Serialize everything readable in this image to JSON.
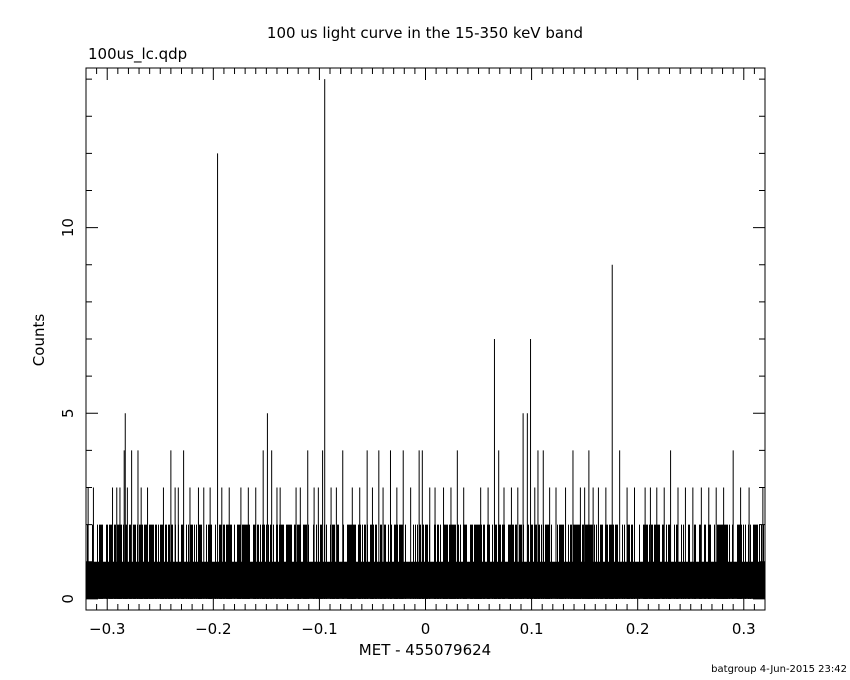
{
  "chart_data": {
    "type": "bar",
    "title": "100 us light curve in the 15-350 keV band",
    "subtitle": "100us_lc.qdp",
    "xlabel": "MET - 455079624",
    "ylabel": "Counts",
    "footer": "batgroup  4-Jun-2015 23:42",
    "xlim": [
      -0.32,
      0.32
    ],
    "ylim": [
      -0.3,
      14.3
    ],
    "x_ticks": [
      -0.3,
      -0.2,
      -0.1,
      0,
      0.1,
      0.2,
      0.3
    ],
    "x_tick_labels": [
      "−0.3",
      "−0.2",
      "−0.1",
      "0",
      "0.1",
      "0.2",
      "0.3"
    ],
    "y_ticks": [
      0,
      5,
      10
    ],
    "y_tick_labels": [
      "0",
      "5",
      "10"
    ],
    "bin_width": 0.0001,
    "baseline_note": "Counts of 0-2 in nearly every bin",
    "series": [
      {
        "points": [
          {
            "x": -0.283,
            "y": 5
          },
          {
            "x": -0.284,
            "y": 4
          },
          {
            "x": -0.277,
            "y": 4
          },
          {
            "x": -0.271,
            "y": 4
          },
          {
            "x": -0.24,
            "y": 4
          },
          {
            "x": -0.228,
            "y": 4
          },
          {
            "x": -0.196,
            "y": 12
          },
          {
            "x": -0.153,
            "y": 4
          },
          {
            "x": -0.149,
            "y": 5
          },
          {
            "x": -0.145,
            "y": 4
          },
          {
            "x": -0.111,
            "y": 4
          },
          {
            "x": -0.097,
            "y": 4
          },
          {
            "x": -0.095,
            "y": 14
          },
          {
            "x": -0.078,
            "y": 4
          },
          {
            "x": -0.055,
            "y": 4
          },
          {
            "x": -0.044,
            "y": 4
          },
          {
            "x": -0.033,
            "y": 4
          },
          {
            "x": -0.021,
            "y": 4
          },
          {
            "x": -0.006,
            "y": 4
          },
          {
            "x": -0.003,
            "y": 4
          },
          {
            "x": 0.03,
            "y": 4
          },
          {
            "x": 0.065,
            "y": 7
          },
          {
            "x": 0.069,
            "y": 4
          },
          {
            "x": 0.092,
            "y": 5
          },
          {
            "x": 0.096,
            "y": 5
          },
          {
            "x": 0.099,
            "y": 7
          },
          {
            "x": 0.106,
            "y": 4
          },
          {
            "x": 0.111,
            "y": 4
          },
          {
            "x": 0.139,
            "y": 4
          },
          {
            "x": 0.154,
            "y": 4
          },
          {
            "x": 0.176,
            "y": 9
          },
          {
            "x": 0.183,
            "y": 4
          },
          {
            "x": 0.231,
            "y": 4
          },
          {
            "x": 0.29,
            "y": 4
          },
          {
            "x": -0.318,
            "y": 3
          },
          {
            "x": -0.313,
            "y": 3
          },
          {
            "x": -0.295,
            "y": 3
          },
          {
            "x": -0.291,
            "y": 3
          },
          {
            "x": -0.288,
            "y": 3
          },
          {
            "x": -0.281,
            "y": 3
          },
          {
            "x": -0.268,
            "y": 3
          },
          {
            "x": -0.262,
            "y": 3
          },
          {
            "x": -0.247,
            "y": 3
          },
          {
            "x": -0.236,
            "y": 3
          },
          {
            "x": -0.233,
            "y": 3
          },
          {
            "x": -0.222,
            "y": 3
          },
          {
            "x": -0.214,
            "y": 3
          },
          {
            "x": -0.209,
            "y": 3
          },
          {
            "x": -0.203,
            "y": 3
          },
          {
            "x": -0.192,
            "y": 3
          },
          {
            "x": -0.185,
            "y": 3
          },
          {
            "x": -0.174,
            "y": 3
          },
          {
            "x": -0.167,
            "y": 3
          },
          {
            "x": -0.16,
            "y": 3
          },
          {
            "x": -0.14,
            "y": 3
          },
          {
            "x": -0.137,
            "y": 3
          },
          {
            "x": -0.122,
            "y": 3
          },
          {
            "x": -0.118,
            "y": 3
          },
          {
            "x": -0.105,
            "y": 3
          },
          {
            "x": -0.101,
            "y": 3
          },
          {
            "x": -0.089,
            "y": 3
          },
          {
            "x": -0.084,
            "y": 3
          },
          {
            "x": -0.069,
            "y": 3
          },
          {
            "x": -0.062,
            "y": 3
          },
          {
            "x": -0.05,
            "y": 3
          },
          {
            "x": -0.04,
            "y": 3
          },
          {
            "x": -0.027,
            "y": 3
          },
          {
            "x": -0.014,
            "y": 3
          },
          {
            "x": 0.004,
            "y": 3
          },
          {
            "x": 0.009,
            "y": 3
          },
          {
            "x": 0.017,
            "y": 3
          },
          {
            "x": 0.024,
            "y": 3
          },
          {
            "x": 0.036,
            "y": 3
          },
          {
            "x": 0.052,
            "y": 3
          },
          {
            "x": 0.059,
            "y": 3
          },
          {
            "x": 0.074,
            "y": 3
          },
          {
            "x": 0.081,
            "y": 3
          },
          {
            "x": 0.087,
            "y": 3
          },
          {
            "x": 0.103,
            "y": 3
          },
          {
            "x": 0.117,
            "y": 3
          },
          {
            "x": 0.123,
            "y": 3
          },
          {
            "x": 0.132,
            "y": 3
          },
          {
            "x": 0.146,
            "y": 3
          },
          {
            "x": 0.15,
            "y": 3
          },
          {
            "x": 0.158,
            "y": 3
          },
          {
            "x": 0.163,
            "y": 3
          },
          {
            "x": 0.17,
            "y": 3
          },
          {
            "x": 0.19,
            "y": 3
          },
          {
            "x": 0.197,
            "y": 3
          },
          {
            "x": 0.207,
            "y": 3
          },
          {
            "x": 0.212,
            "y": 3
          },
          {
            "x": 0.218,
            "y": 3
          },
          {
            "x": 0.225,
            "y": 3
          },
          {
            "x": 0.238,
            "y": 3
          },
          {
            "x": 0.245,
            "y": 3
          },
          {
            "x": 0.252,
            "y": 3
          },
          {
            "x": 0.26,
            "y": 3
          },
          {
            "x": 0.267,
            "y": 3
          },
          {
            "x": 0.274,
            "y": 3
          },
          {
            "x": 0.281,
            "y": 3
          },
          {
            "x": 0.297,
            "y": 3
          },
          {
            "x": 0.305,
            "y": 3
          },
          {
            "x": 0.318,
            "y": 3
          }
        ]
      }
    ]
  }
}
